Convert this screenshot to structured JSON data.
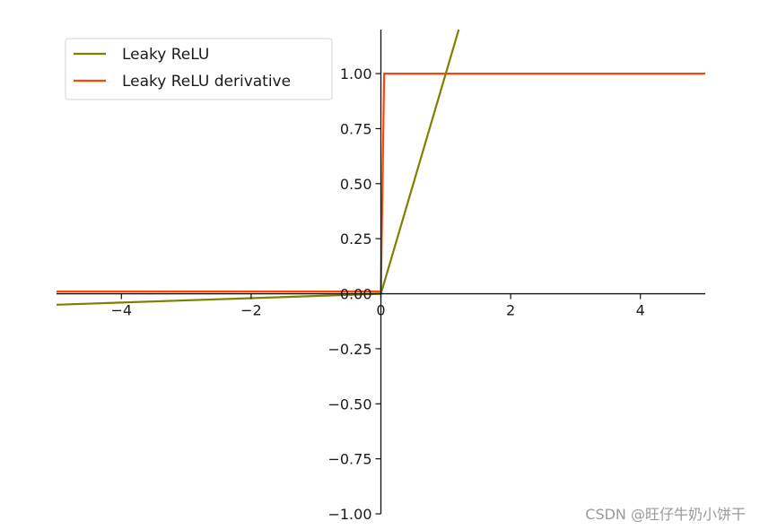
{
  "chart_data": {
    "type": "line",
    "xlim": [
      -5,
      5
    ],
    "ylim": [
      -1,
      1.2
    ],
    "x_ticks": [
      -4,
      -2,
      0,
      2,
      4
    ],
    "x_tick_labels": [
      "−4",
      "−2",
      "0",
      "2",
      "4"
    ],
    "y_ticks": [
      -1,
      -0.75,
      -0.5,
      -0.25,
      0,
      0.25,
      0.5,
      0.75,
      1
    ],
    "y_tick_labels": [
      "−1.00",
      "−0.75",
      "−0.50",
      "−0.25",
      "0.00",
      "0.25",
      "0.50",
      "0.75",
      "1.00"
    ],
    "grid": false,
    "spines": "centered at origin",
    "legend_position": "top-left",
    "series": [
      {
        "name": "Leaky ReLU",
        "color": "#808000",
        "x": [
          -5,
          0,
          1.2
        ],
        "y": [
          -0.05,
          0,
          1.2
        ]
      },
      {
        "name": "Leaky ReLU derivative",
        "color": "#ff4500",
        "x": [
          -5,
          0,
          0,
          0.05,
          5
        ],
        "y": [
          0.01,
          0.01,
          0,
          1,
          1
        ]
      }
    ]
  },
  "watermark": "CSDN @旺仔牛奶小饼干"
}
